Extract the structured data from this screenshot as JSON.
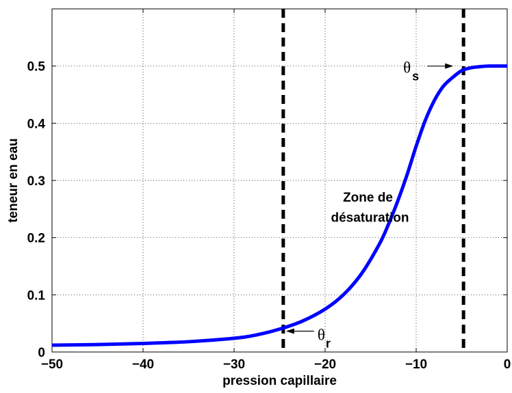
{
  "chart_data": {
    "type": "line",
    "xlabel": "pression capillaire",
    "ylabel": "teneur en eau",
    "xlim": [
      -50,
      0
    ],
    "ylim": [
      0,
      0.6
    ],
    "xticks": [
      "−50",
      "−40",
      "−30",
      "−20",
      "−10",
      "0"
    ],
    "yticks": [
      "0",
      "0.1",
      "0.2",
      "0.3",
      "0.4",
      "0.5"
    ],
    "grid": true,
    "series": [
      {
        "color": "#0000ff",
        "x": [
          -50,
          -45,
          -40,
          -35,
          -30,
          -27.5,
          -25,
          -22.5,
          -20,
          -18,
          -16,
          -14,
          -13,
          -12,
          -11,
          -10,
          -9,
          -8,
          -7,
          -6,
          -5,
          -4,
          -3,
          -2,
          -1,
          0
        ],
        "y": [
          0.012,
          0.013,
          0.015,
          0.018,
          0.024,
          0.03,
          0.04,
          0.054,
          0.075,
          0.1,
          0.137,
          0.19,
          0.225,
          0.265,
          0.31,
          0.36,
          0.405,
          0.44,
          0.465,
          0.48,
          0.492,
          0.497,
          0.499,
          0.5,
          0.5,
          0.5
        ]
      }
    ],
    "vlines": [
      {
        "x": -24.6,
        "style": "dashed",
        "color": "#000000"
      },
      {
        "x": -4.8,
        "style": "dashed",
        "color": "#000000"
      }
    ],
    "annotations": {
      "zone_line1": "Zone de",
      "zone_line2": "désaturation",
      "theta_r_symbol": "θ",
      "theta_r_sub": "r",
      "theta_s_symbol": "θ",
      "theta_s_sub": "s",
      "theta_r_point": [
        -24.6,
        0.04
      ],
      "theta_s_point": [
        -4.8,
        0.5
      ]
    }
  }
}
